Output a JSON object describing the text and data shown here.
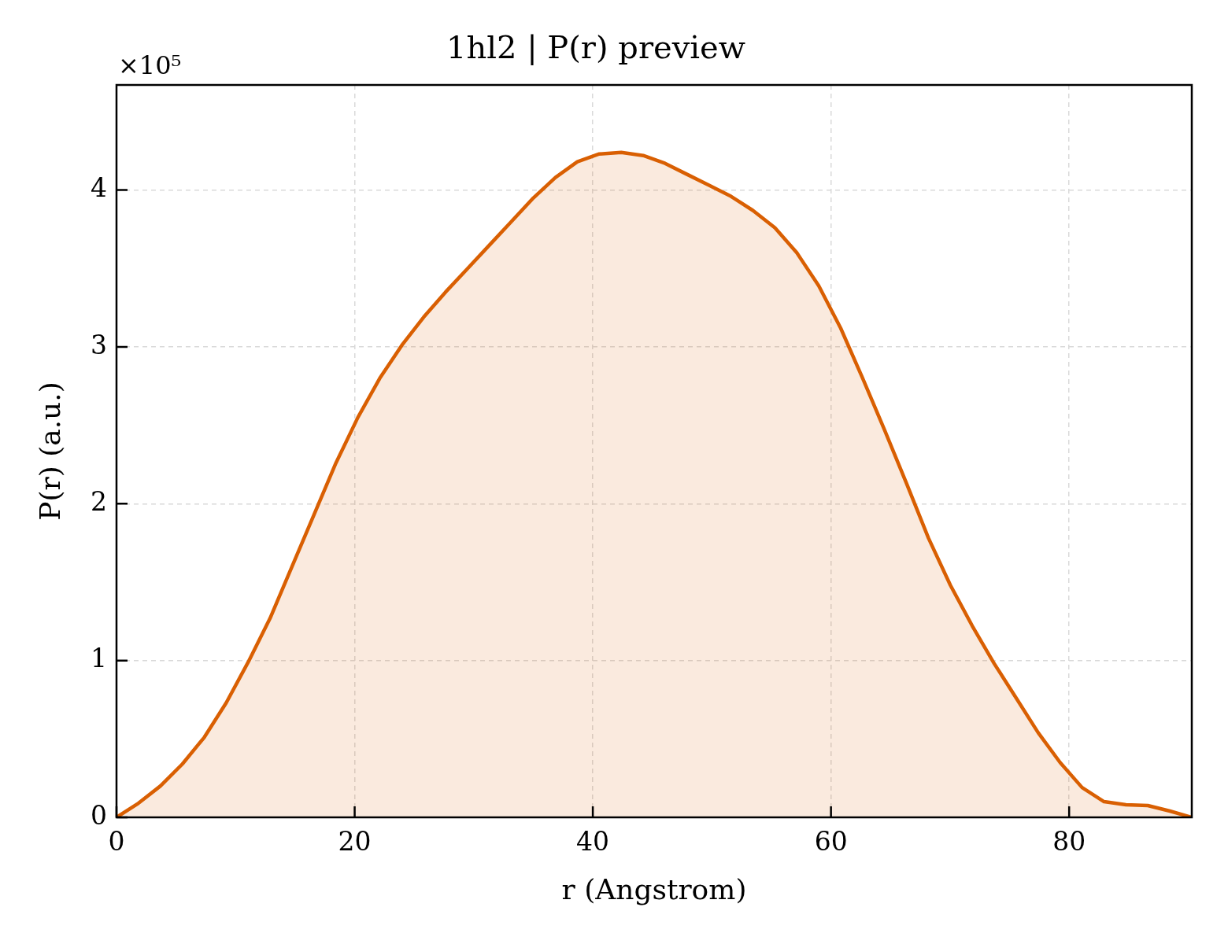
{
  "chart_data": {
    "type": "area",
    "title": "1hl2 | P(r) preview",
    "xlabel": "r (Angstrom)",
    "ylabel": "P(r) (a.u.)",
    "annotations": [
      "×10⁵"
    ],
    "x": [
      0,
      1.84,
      3.69,
      5.53,
      7.37,
      9.21,
      11.06,
      12.9,
      14.74,
      16.59,
      18.43,
      20.27,
      22.11,
      23.96,
      25.8,
      27.64,
      29.49,
      31.33,
      33.17,
      35.01,
      36.86,
      38.7,
      40.54,
      42.39,
      44.23,
      46.07,
      47.91,
      49.76,
      51.6,
      53.44,
      55.29,
      57.13,
      58.97,
      60.81,
      62.66,
      64.5,
      66.34,
      68.19,
      70.03,
      71.87,
      73.71,
      75.56,
      77.4,
      79.24,
      81.09,
      82.93,
      84.77,
      86.61,
      88.46,
      90.3
    ],
    "series": [
      {
        "color": "#d95f02",
        "values": [
          0,
          0.09,
          0.2,
          0.34,
          0.51,
          0.73,
          0.99,
          1.27,
          1.6,
          1.93,
          2.26,
          2.55,
          2.8,
          3.01,
          3.19,
          3.35,
          3.5,
          3.65,
          3.8,
          3.95,
          4.08,
          4.18,
          4.23,
          4.24,
          4.22,
          4.17,
          4.1,
          4.03,
          3.96,
          3.87,
          3.76,
          3.6,
          3.39,
          3.12,
          2.8,
          2.47,
          2.13,
          1.78,
          1.48,
          1.22,
          0.98,
          0.76,
          0.54,
          0.35,
          0.19,
          0.1,
          0.08,
          0.075,
          0.04,
          0
        ]
      }
    ],
    "xlim": [
      0,
      90.3
    ],
    "ylim": [
      0,
      4.67
    ],
    "xticks": [
      0,
      20,
      40,
      60,
      80
    ],
    "yticks": [
      0,
      1,
      2,
      3,
      4
    ],
    "grid": true
  }
}
